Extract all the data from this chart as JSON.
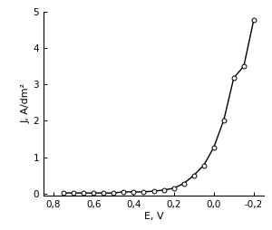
{
  "x_data": [
    0.75,
    0.7,
    0.65,
    0.6,
    0.55,
    0.5,
    0.45,
    0.4,
    0.35,
    0.3,
    0.25,
    0.2,
    0.15,
    0.1,
    0.05,
    0.0,
    -0.05,
    -0.1,
    -0.15,
    -0.2
  ],
  "y_data": [
    0.02,
    0.02,
    0.02,
    0.02,
    0.02,
    0.02,
    0.05,
    0.05,
    0.05,
    0.07,
    0.1,
    0.15,
    0.28,
    0.5,
    0.78,
    1.27,
    2.02,
    3.18,
    3.5,
    4.78
  ],
  "xlabel": "E, V",
  "ylabel": "J, A/dm²",
  "xlim": [
    0.85,
    -0.25
  ],
  "ylim": [
    -0.05,
    5.0
  ],
  "xticks": [
    0.8,
    0.6,
    0.4,
    0.2,
    0.0,
    -0.2
  ],
  "yticks": [
    0,
    1,
    2,
    3,
    4,
    5
  ],
  "xtick_labels": [
    "0,8",
    "0,6",
    "0,4",
    "0,2",
    "0,0",
    "-0,2"
  ],
  "ytick_labels": [
    "0",
    "1",
    "2",
    "3",
    "4",
    "5"
  ],
  "line_color": "#000000",
  "marker": "o",
  "marker_facecolor": "white",
  "marker_edgecolor": "#000000",
  "marker_size": 3.5,
  "linewidth": 1.0,
  "background_color": "#ffffff",
  "label_fontsize": 8,
  "tick_fontsize": 7.5
}
